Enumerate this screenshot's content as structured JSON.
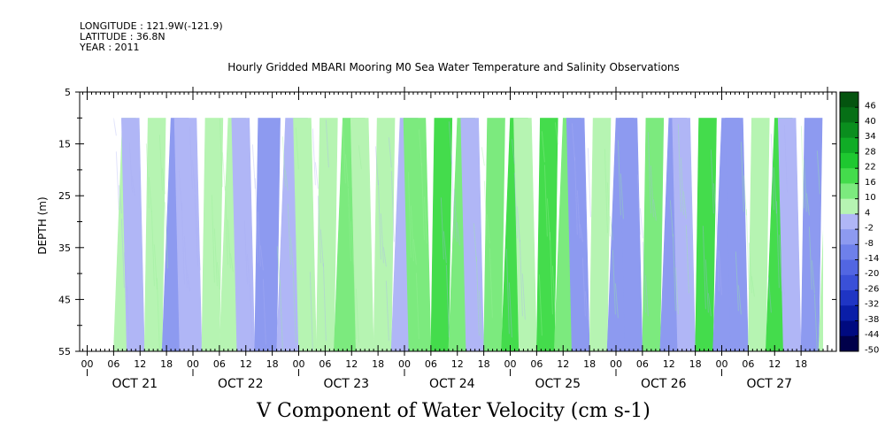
{
  "header": {
    "longitude": "LONGITUDE : 121.9W(-121.9)",
    "latitude": "LATITUDE : 36.8N",
    "year": "YEAR : 2011",
    "title": "Hourly Gridded MBARI Mooring M0 Sea Water Temperature and Salinity Observations"
  },
  "colors": {
    "green": "#22dd44",
    "light_green": "#99f099",
    "lavender": "#aab0f4",
    "blue": "#7f8ef2",
    "background": "#ffffff"
  },
  "chart_data": {
    "type": "heatmap",
    "title": "V Component of Water Velocity (cm s-1)",
    "ylabel": "DEPTH (m)",
    "y_axis": {
      "range": [
        5,
        55
      ],
      "inverted": true,
      "ticks": [
        5,
        15,
        25,
        35,
        45,
        55
      ],
      "tick_labels": [
        "5",
        "15",
        "25",
        "35",
        "45",
        "55"
      ]
    },
    "x_axis": {
      "hour_ticks": [
        "00",
        "06",
        "12",
        "18",
        "00",
        "06",
        "12",
        "18",
        "00",
        "06",
        "12",
        "18",
        "00",
        "06",
        "12",
        "18",
        "00",
        "06",
        "12",
        "18",
        "00",
        "06",
        "12",
        "18",
        "00",
        "06",
        "12",
        "18"
      ],
      "day_labels": [
        "OCT 21",
        "OCT 22",
        "OCT 23",
        "OCT 24",
        "OCT 25",
        "OCT 26",
        "OCT 27"
      ]
    },
    "data_extent": {
      "start": "OCT 21 06:00",
      "end": "OCT 27 23:00",
      "depth_top": 10,
      "depth_bottom": 55
    },
    "colorbar": {
      "range": [
        -50,
        50
      ],
      "tick_labels": [
        "46",
        "40",
        "34",
        "28",
        "22",
        "16",
        "10",
        "4",
        "-2",
        "-8",
        "-14",
        "-20",
        "-26",
        "-32",
        "-38",
        "-44",
        "-50"
      ],
      "stops": [
        {
          "value": -50,
          "color": "#00004a"
        },
        {
          "value": -44,
          "color": "#000a80"
        },
        {
          "value": -38,
          "color": "#0a1ea8"
        },
        {
          "value": -32,
          "color": "#1f35c4"
        },
        {
          "value": -26,
          "color": "#3a50d8"
        },
        {
          "value": -20,
          "color": "#5266e2"
        },
        {
          "value": -14,
          "color": "#6e80ea"
        },
        {
          "value": -8,
          "color": "#8d9af0"
        },
        {
          "value": -2,
          "color": "#b0b6f6"
        },
        {
          "value": 4,
          "color": "#b6f4b2"
        },
        {
          "value": 10,
          "color": "#7cea7e"
        },
        {
          "value": 16,
          "color": "#44dc4c"
        },
        {
          "value": 22,
          "color": "#1ec830"
        },
        {
          "value": 28,
          "color": "#10ac26"
        },
        {
          "value": 34,
          "color": "#0a8e1e"
        },
        {
          "value": 40,
          "color": "#067016"
        },
        {
          "value": 46,
          "color": "#04540f"
        }
      ]
    },
    "velocity_bands": [
      {
        "time": "OCT 21 06:00",
        "value": 4
      },
      {
        "time": "OCT 21 09:00",
        "value": -4
      },
      {
        "time": "OCT 21 13:00",
        "value": 2
      },
      {
        "time": "OCT 21 17:00",
        "value": -6
      },
      {
        "time": "OCT 21 21:00",
        "value": -2
      },
      {
        "time": "OCT 22 02:00",
        "value": 6
      },
      {
        "time": "OCT 22 06:00",
        "value": 2
      },
      {
        "time": "OCT 22 10:00",
        "value": -4
      },
      {
        "time": "OCT 22 14:00",
        "value": -8
      },
      {
        "time": "OCT 22 19:00",
        "value": -2
      },
      {
        "time": "OCT 23 00:00",
        "value": 2
      },
      {
        "time": "OCT 23 04:00",
        "value": 6
      },
      {
        "time": "OCT 23 08:00",
        "value": 10
      },
      {
        "time": "OCT 23 13:00",
        "value": 6
      },
      {
        "time": "OCT 23 17:00",
        "value": 2
      },
      {
        "time": "OCT 23 21:00",
        "value": -2
      },
      {
        "time": "OCT 24 01:00",
        "value": 8
      },
      {
        "time": "OCT 24 06:00",
        "value": 18
      },
      {
        "time": "OCT 24 10:00",
        "value": 12
      },
      {
        "time": "OCT 24 14:00",
        "value": -4
      },
      {
        "time": "OCT 24 18:00",
        "value": 10
      },
      {
        "time": "OCT 24 22:00",
        "value": 14
      },
      {
        "time": "OCT 25 02:00",
        "value": 4
      },
      {
        "time": "OCT 25 06:00",
        "value": 16
      },
      {
        "time": "OCT 25 10:00",
        "value": 10
      },
      {
        "time": "OCT 25 14:00",
        "value": -10
      },
      {
        "time": "OCT 25 18:00",
        "value": 6
      },
      {
        "time": "OCT 25 22:00",
        "value": -6
      },
      {
        "time": "OCT 26 02:00",
        "value": -10
      },
      {
        "time": "OCT 26 06:00",
        "value": 12
      },
      {
        "time": "OCT 26 10:00",
        "value": -6
      },
      {
        "time": "OCT 26 14:00",
        "value": -4
      },
      {
        "time": "OCT 26 18:00",
        "value": 14
      },
      {
        "time": "OCT 26 22:00",
        "value": -8
      },
      {
        "time": "OCT 27 02:00",
        "value": -6
      },
      {
        "time": "OCT 27 06:00",
        "value": 4
      },
      {
        "time": "OCT 27 10:00",
        "value": 14
      },
      {
        "time": "OCT 27 14:00",
        "value": -4
      },
      {
        "time": "OCT 27 18:00",
        "value": -8
      },
      {
        "time": "OCT 27 22:00",
        "value": 6
      }
    ]
  }
}
